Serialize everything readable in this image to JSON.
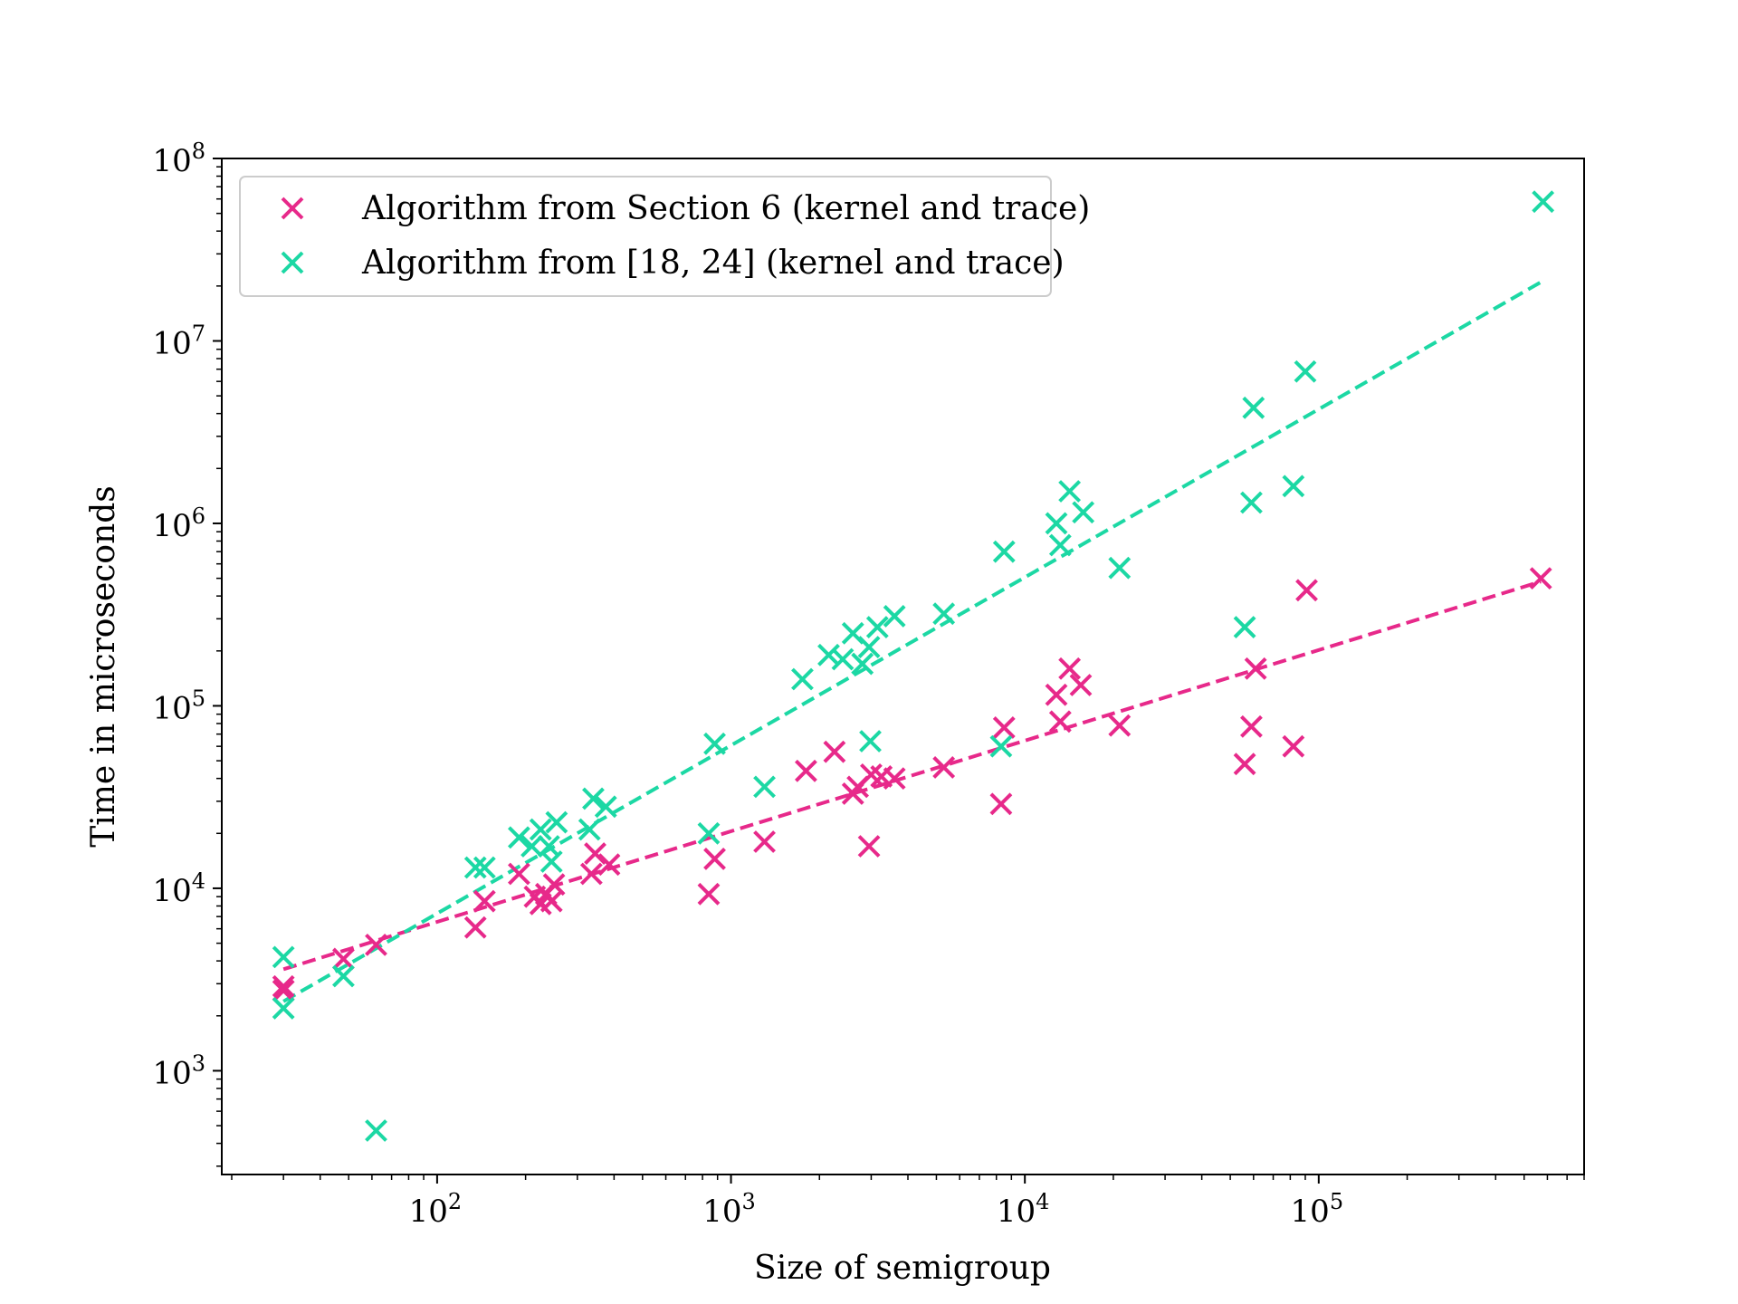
{
  "chart_data": {
    "type": "scatter",
    "title": "",
    "xlabel": "Size of semigroup",
    "ylabel": "Time in microseconds",
    "xscale": "log",
    "yscale": "log",
    "xlim": [
      18.5,
      800000
    ],
    "ylim": [
      270,
      100000000
    ],
    "grid": false,
    "legend_position": "top-left",
    "x_ticks": [
      {
        "value": 100,
        "base": "10",
        "exp": "2"
      },
      {
        "value": 1000,
        "base": "10",
        "exp": "3"
      },
      {
        "value": 10000,
        "base": "10",
        "exp": "4"
      },
      {
        "value": 100000,
        "base": "10",
        "exp": "5"
      }
    ],
    "y_ticks": [
      {
        "value": 1000,
        "base": "10",
        "exp": "3"
      },
      {
        "value": 10000,
        "base": "10",
        "exp": "4"
      },
      {
        "value": 100000,
        "base": "10",
        "exp": "5"
      },
      {
        "value": 1000000,
        "base": "10",
        "exp": "6"
      },
      {
        "value": 10000000,
        "base": "10",
        "exp": "7"
      },
      {
        "value": 100000000,
        "base": "10",
        "exp": "8"
      }
    ],
    "series": [
      {
        "name": "Algorithm from Section 6 (kernel and trace)",
        "color": "#e7298a",
        "marker": "x",
        "points": [
          [
            30,
            2750
          ],
          [
            30,
            2900
          ],
          [
            48,
            4100
          ],
          [
            62,
            4900
          ],
          [
            135,
            6100
          ],
          [
            145,
            8500
          ],
          [
            190,
            12000
          ],
          [
            215,
            9000
          ],
          [
            225,
            8200
          ],
          [
            235,
            9300
          ],
          [
            245,
            8500
          ],
          [
            250,
            10500
          ],
          [
            335,
            12000
          ],
          [
            345,
            15500
          ],
          [
            385,
            13500
          ],
          [
            840,
            9300
          ],
          [
            880,
            14500
          ],
          [
            1300,
            18000
          ],
          [
            1800,
            44000
          ],
          [
            2250,
            56000
          ],
          [
            2600,
            33000
          ],
          [
            2700,
            36000
          ],
          [
            2950,
            17000
          ],
          [
            3000,
            42000
          ],
          [
            3250,
            41000
          ],
          [
            3600,
            40000
          ],
          [
            5300,
            46000
          ],
          [
            8300,
            29000
          ],
          [
            8500,
            76000
          ],
          [
            12800,
            115000
          ],
          [
            13200,
            82000
          ],
          [
            14200,
            160000
          ],
          [
            15500,
            130000
          ],
          [
            21000,
            78000
          ],
          [
            56000,
            48000
          ],
          [
            59000,
            77000
          ],
          [
            61000,
            160000
          ],
          [
            82000,
            60000
          ],
          [
            91000,
            430000
          ],
          [
            570000,
            500000
          ]
        ],
        "fit": {
          "x": [
            30,
            570000
          ],
          "y": [
            3600,
            480000
          ]
        }
      },
      {
        "name": "Algorithm from [18, 24] (kernel and trace)",
        "color": "#1cd8a4",
        "marker": "x",
        "points": [
          [
            30,
            4200
          ],
          [
            30,
            2200
          ],
          [
            48,
            3300
          ],
          [
            62,
            470
          ],
          [
            135,
            13000
          ],
          [
            145,
            13000
          ],
          [
            190,
            19000
          ],
          [
            210,
            17000
          ],
          [
            225,
            21000
          ],
          [
            240,
            17000
          ],
          [
            245,
            14000
          ],
          [
            255,
            23000
          ],
          [
            330,
            21000
          ],
          [
            340,
            31000
          ],
          [
            375,
            28000
          ],
          [
            840,
            20000
          ],
          [
            880,
            62000
          ],
          [
            1300,
            36000
          ],
          [
            1750,
            140000
          ],
          [
            2150,
            190000
          ],
          [
            2400,
            180000
          ],
          [
            2600,
            250000
          ],
          [
            2800,
            170000
          ],
          [
            2950,
            210000
          ],
          [
            2980,
            64000
          ],
          [
            3150,
            270000
          ],
          [
            3600,
            310000
          ],
          [
            5300,
            320000
          ],
          [
            8300,
            60000
          ],
          [
            8500,
            700000
          ],
          [
            12800,
            1000000
          ],
          [
            13200,
            760000
          ],
          [
            14200,
            1500000
          ],
          [
            15800,
            1150000
          ],
          [
            21000,
            570000
          ],
          [
            56000,
            270000
          ],
          [
            59000,
            1300000
          ],
          [
            60000,
            4300000
          ],
          [
            82000,
            1600000
          ],
          [
            90000,
            6800000
          ],
          [
            580000,
            58000000
          ]
        ],
        "fit": {
          "x": [
            30,
            570000
          ],
          "y": [
            2400,
            21000000
          ]
        }
      }
    ]
  }
}
